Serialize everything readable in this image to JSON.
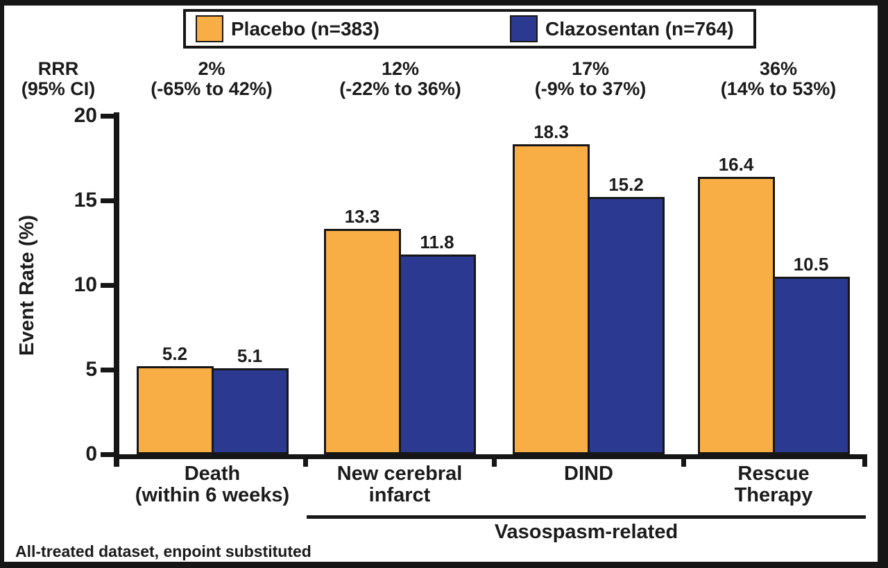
{
  "chart_data": {
    "type": "bar",
    "title": "",
    "categories": [
      "Death (within 6 weeks)",
      "New cerebral infarct",
      "DIND",
      "Rescue Therapy"
    ],
    "category_lines": [
      [
        "Death",
        "(within 6 weeks)"
      ],
      [
        "New cerebral",
        "infarct"
      ],
      [
        "DIND"
      ],
      [
        "Rescue",
        "Therapy"
      ]
    ],
    "series": [
      {
        "name": "Placebo (n=383)",
        "color": "#F9AE45",
        "values": [
          5.2,
          13.3,
          18.3,
          16.4
        ]
      },
      {
        "name": "Clazosentan (n=764)",
        "color": "#2B3990",
        "values": [
          5.1,
          11.8,
          15.2,
          10.5
        ]
      }
    ],
    "xlabel": "",
    "ylabel": "Event Rate (%)",
    "ylim": [
      0,
      20
    ],
    "yticks": [
      0,
      5,
      10,
      15,
      20
    ],
    "grid": false,
    "legend_position": "top",
    "value_labels": true,
    "bracket": {
      "label": "Vasospasm-related",
      "categories": [
        "New cerebral infarct",
        "DIND",
        "Rescue Therapy"
      ]
    },
    "footnote": "All-treated dataset, enpoint substituted"
  },
  "rrr": {
    "header": [
      "RRR",
      "(95% CI)"
    ],
    "values": [
      {
        "pct": "2%",
        "ci": "(-65% to 42%)"
      },
      {
        "pct": "12%",
        "ci": "(-22% to 36%)"
      },
      {
        "pct": "17%",
        "ci": "(-9% to 37%)"
      },
      {
        "pct": "36%",
        "ci": "(14% to 53%)"
      }
    ]
  },
  "colors": {
    "placebo": "#F9AE45",
    "clazosentan": "#2B3990",
    "axis": "#161616",
    "text": "#1b1b1b"
  }
}
